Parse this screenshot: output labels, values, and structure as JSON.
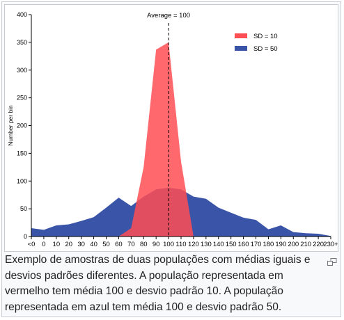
{
  "chart_data": {
    "type": "area",
    "title": "",
    "xlabel": "",
    "ylabel": "Number per bin",
    "ylim": [
      0,
      400
    ],
    "yticks": [
      0,
      50,
      100,
      150,
      200,
      250,
      300,
      350,
      400
    ],
    "categories": [
      "<0",
      "0",
      "10",
      "20",
      "30",
      "40",
      "50",
      "60",
      "70",
      "80",
      "90",
      "100",
      "110",
      "120",
      "130",
      "140",
      "150",
      "160",
      "170",
      "180",
      "190",
      "200",
      "210",
      "220",
      "230+"
    ],
    "series": [
      {
        "name": "SD = 50",
        "color": "#3a55a8",
        "values": [
          15,
          12,
          20,
          22,
          28,
          35,
          52,
          70,
          55,
          72,
          85,
          88,
          85,
          72,
          68,
          52,
          43,
          34,
          30,
          13,
          20,
          8,
          6,
          5,
          1
        ]
      },
      {
        "name": "SD = 10",
        "color": "#ff4d54",
        "values": [
          0,
          0,
          0,
          0,
          0,
          0,
          0,
          0,
          15,
          125,
          337,
          350,
          135,
          0,
          0,
          0,
          0,
          0,
          0,
          0,
          0,
          0,
          0,
          0,
          0
        ]
      }
    ],
    "annotation": {
      "text": "Average = 100",
      "x": "100"
    },
    "legend_position": "top-right",
    "grid": false
  },
  "caption": "Exemplo de amostras de duas populações com médias iguais e desvios padrões diferentes. A população representada em vermelho tem média 100 e desvio padrão 10. A população representada em azul tem média 100 e desvio padrão 50.",
  "icons": {
    "enlarge": "magnify-icon"
  }
}
